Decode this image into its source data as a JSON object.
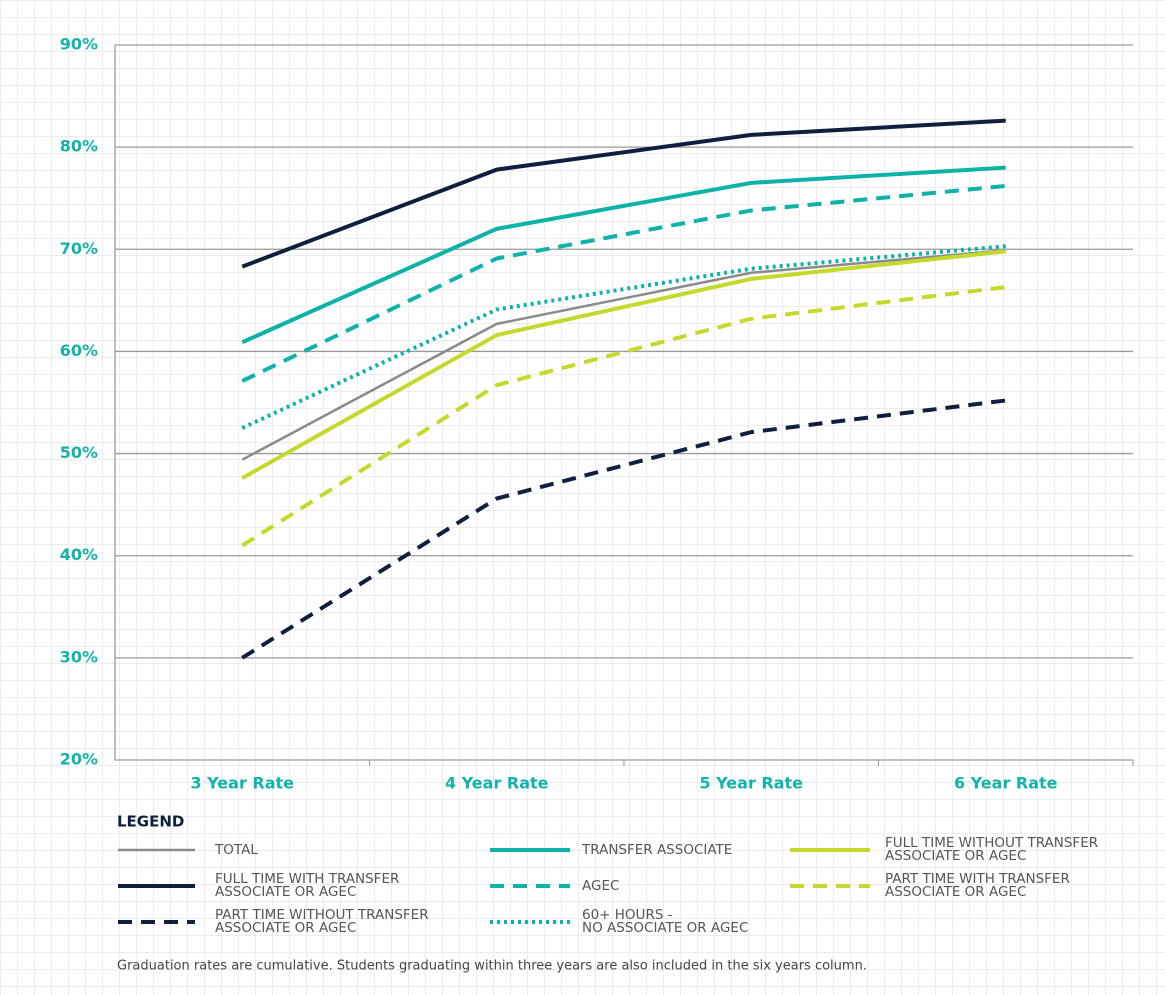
{
  "chart_data": {
    "type": "line",
    "categories": [
      "3 Year Rate",
      "4 Year Rate",
      "5 Year Rate",
      "6 Year Rate"
    ],
    "ylim": [
      20,
      90
    ],
    "yticks": [
      {
        "value": 20,
        "label": "20%"
      },
      {
        "value": 30,
        "label": "30%"
      },
      {
        "value": 40,
        "label": "40%"
      },
      {
        "value": 50,
        "label": "50%"
      },
      {
        "value": 60,
        "label": "60%"
      },
      {
        "value": 70,
        "label": "70%"
      },
      {
        "value": 80,
        "label": "80%"
      },
      {
        "value": 90,
        "label": "90%"
      }
    ],
    "grid": true,
    "legend_title": "LEGEND",
    "note": "Graduation rates are cumulative. Students graduating within three years are also included in the six years column.",
    "series": [
      {
        "name": "TOTAL",
        "color": "#8a8a8a",
        "dash": "solid",
        "width": 2.5,
        "values": [
          49.4,
          62.7,
          67.7,
          69.9
        ]
      },
      {
        "name": "FULL TIME  WITH TRANSFER\nASSOCIATE OR AGEC",
        "color": "#0f1f3d",
        "dash": "solid",
        "width": 4,
        "values": [
          68.3,
          77.8,
          81.2,
          82.6
        ]
      },
      {
        "name": "PART TIME WITHOUT TRANSFER\nASSOCIATE OR AGEC",
        "color": "#0f1f3d",
        "dash": "dashed",
        "width": 4,
        "values": [
          30,
          45.6,
          52.1,
          55.2
        ]
      },
      {
        "name": "TRANSFER ASSOCIATE",
        "color": "#0db3a6",
        "dash": "solid",
        "width": 4,
        "values": [
          60.9,
          72,
          76.5,
          78
        ]
      },
      {
        "name": "AGEC",
        "color": "#0db3a6",
        "dash": "dashed",
        "width": 4,
        "values": [
          57.1,
          69.1,
          73.8,
          76.2
        ]
      },
      {
        "name": "60+ HOURS -\nNO ASSOCIATE OR AGEC",
        "color": "#0db3a6",
        "dash": "dotted",
        "width": 4,
        "values": [
          52.5,
          64.1,
          68.1,
          70.3
        ]
      },
      {
        "name": "FULL TIME WITHOUT TRANSFER\nASSOCIATE OR AGEC",
        "color": "#c5d92d",
        "dash": "solid",
        "width": 4,
        "values": [
          47.6,
          61.6,
          67.1,
          69.8
        ]
      },
      {
        "name": "PART TIME WITH TRANSFER\nASSOCIATE OR AGEC",
        "color": "#c5d92d",
        "dash": "dashed",
        "width": 4,
        "values": [
          41,
          56.7,
          63.2,
          66.3
        ]
      }
    ]
  }
}
